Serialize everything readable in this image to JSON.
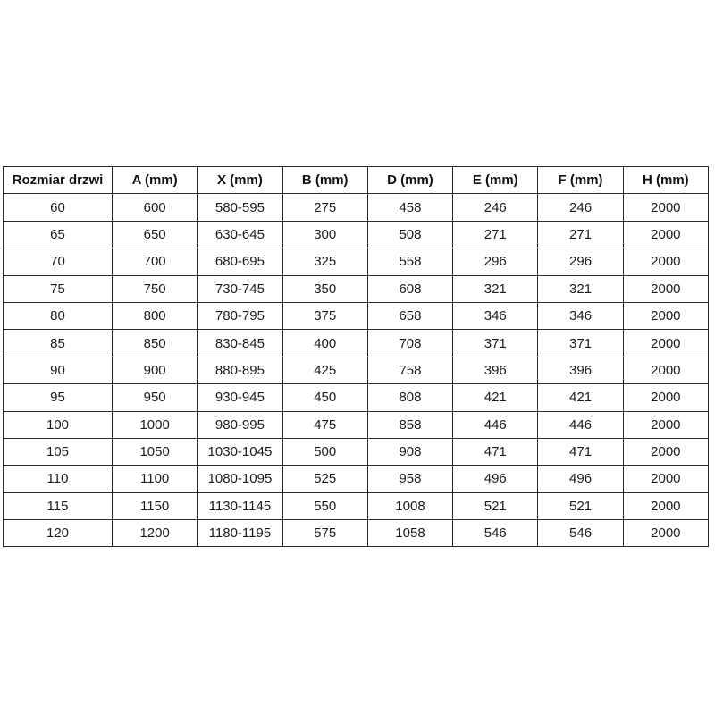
{
  "page": {
    "background_color": "#ffffff",
    "border_color": "#2b2b2b",
    "text_color": "#1a1a1a"
  },
  "table": {
    "name": "door-size-dimensions-table",
    "columns": [
      "Rozmiar drzwi",
      "A (mm)",
      "X (mm)",
      "B (mm)",
      "D (mm)",
      "E (mm)",
      "F (mm)",
      "H (mm)"
    ],
    "rows": [
      [
        "60",
        "600",
        "580-595",
        "275",
        "458",
        "246",
        "246",
        "2000"
      ],
      [
        "65",
        "650",
        "630-645",
        "300",
        "508",
        "271",
        "271",
        "2000"
      ],
      [
        "70",
        "700",
        "680-695",
        "325",
        "558",
        "296",
        "296",
        "2000"
      ],
      [
        "75",
        "750",
        "730-745",
        "350",
        "608",
        "321",
        "321",
        "2000"
      ],
      [
        "80",
        "800",
        "780-795",
        "375",
        "658",
        "346",
        "346",
        "2000"
      ],
      [
        "85",
        "850",
        "830-845",
        "400",
        "708",
        "371",
        "371",
        "2000"
      ],
      [
        "90",
        "900",
        "880-895",
        "425",
        "758",
        "396",
        "396",
        "2000"
      ],
      [
        "95",
        "950",
        "930-945",
        "450",
        "808",
        "421",
        "421",
        "2000"
      ],
      [
        "100",
        "1000",
        "980-995",
        "475",
        "858",
        "446",
        "446",
        "2000"
      ],
      [
        "105",
        "1050",
        "1030-1045",
        "500",
        "908",
        "471",
        "471",
        "2000"
      ],
      [
        "110",
        "1100",
        "1080-1095",
        "525",
        "958",
        "496",
        "496",
        "2000"
      ],
      [
        "115",
        "1150",
        "1130-1145",
        "550",
        "1008",
        "521",
        "521",
        "2000"
      ],
      [
        "120",
        "1200",
        "1180-1195",
        "575",
        "1058",
        "546",
        "546",
        "2000"
      ]
    ]
  }
}
